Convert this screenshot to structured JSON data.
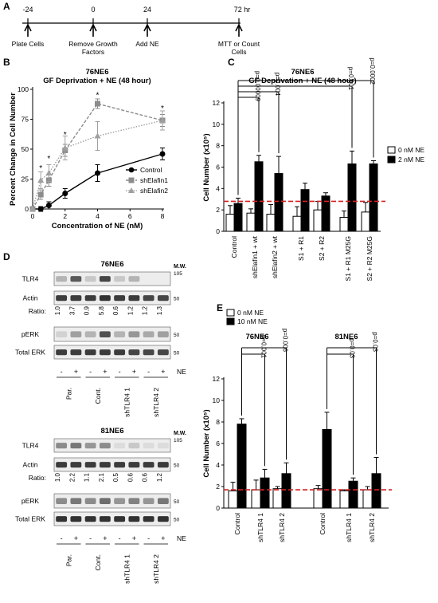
{
  "panel_letters": {
    "A": "A",
    "B": "B",
    "C": "C",
    "D": "D",
    "E": "E"
  },
  "timeline": {
    "ticks": [
      "-24",
      "0",
      "24",
      "72 hr"
    ],
    "events": [
      {
        "lines": [
          "Plate Cells"
        ]
      },
      {
        "lines": [
          "Remove Growth",
          "Factors"
        ]
      },
      {
        "lines": [
          "Add NE"
        ]
      },
      {
        "lines": [
          "MTT or Count",
          "Cells"
        ]
      }
    ]
  },
  "blots": [
    {
      "title": "76NE6",
      "mw_header": "M.W.",
      "rows": [
        {
          "label": "TLR4",
          "mw": "105",
          "kind": "band"
        },
        {
          "label": "Actin",
          "mw": "50",
          "kind": "band"
        },
        {
          "label": "Ratio:",
          "kind": "ratio",
          "values": [
            "1.0",
            "3.7",
            "0.9",
            "5.8",
            "0.6",
            "1.2",
            "1.2",
            "1.3"
          ]
        },
        {
          "label": "pERK",
          "mw": "50",
          "kind": "band"
        },
        {
          "label": "Total ERK",
          "mw": "50",
          "kind": "band"
        }
      ],
      "ne_signs": [
        "-",
        "+",
        "-",
        "+",
        "-",
        "+",
        "-",
        "+"
      ],
      "ne_label": "NE",
      "groups": [
        "Par.",
        "Cont.",
        "shTLR4 1",
        "shTLR4 2"
      ]
    },
    {
      "title": "81NE6",
      "mw_header": "M.W.",
      "rows": [
        {
          "label": "TLR4",
          "mw": "105",
          "kind": "band"
        },
        {
          "label": "Actin",
          "mw": "50",
          "kind": "band"
        },
        {
          "label": "Ratio:",
          "kind": "ratio",
          "values": [
            "1.0",
            "2.2",
            "1.1",
            "2.1",
            "0.5",
            "0.6",
            "0.6",
            "1.2"
          ]
        },
        {
          "label": "pERK",
          "mw": "50",
          "kind": "band"
        },
        {
          "label": "Total ERK",
          "mw": "50",
          "kind": "band"
        }
      ],
      "ne_signs": [
        "-",
        "+",
        "-",
        "+",
        "-",
        "+",
        "-",
        "+"
      ],
      "ne_label": "NE",
      "groups": [
        "Par.",
        "Cont.",
        "shTLR4 1",
        "shTLR4 2"
      ]
    }
  ],
  "chart_data": [
    {
      "panel": "B",
      "type": "line",
      "title": "76NE6",
      "subtitle": "GF Deprivation + NE (48 hour)",
      "xlabel": "Concentration of NE (nM)",
      "ylabel": "Percent Change in Cell Number",
      "xlim": [
        0,
        8
      ],
      "ylim": [
        0,
        100
      ],
      "xticks": [
        "0",
        "2",
        "4",
        "6",
        "8"
      ],
      "yticks": [
        "0",
        "25",
        "50",
        "75",
        "100"
      ],
      "legend_position": "right",
      "x": [
        0,
        0.5,
        1,
        2,
        4,
        8
      ],
      "series": [
        {
          "name": "Control",
          "marker": "circle",
          "color": "#000000",
          "linestyle": "solid",
          "values": [
            0,
            0,
            3,
            13,
            30,
            46
          ],
          "errors": [
            0,
            2,
            3,
            4,
            7,
            5
          ]
        },
        {
          "name": "shElafin1",
          "marker": "square",
          "color": "#8c8c8c",
          "linestyle": "dashed",
          "values": [
            0,
            12,
            24,
            49,
            88,
            74
          ],
          "errors": [
            0,
            4,
            5,
            5,
            4,
            5
          ]
        },
        {
          "name": "shElafin2",
          "marker": "triangle",
          "color": "#a0a0a0",
          "linestyle": "dotted",
          "values": [
            0,
            24,
            30,
            51,
            61,
            74
          ],
          "errors": [
            0,
            7,
            7,
            10,
            12,
            8
          ]
        }
      ],
      "annotations": [
        {
          "text": "*",
          "x": 0.5,
          "y": 32
        },
        {
          "text": "*",
          "x": 1,
          "y": 40
        },
        {
          "text": "*",
          "x": 2,
          "y": 60
        },
        {
          "text": "*",
          "x": 4,
          "y": 93
        },
        {
          "text": "*",
          "x": 8,
          "y": 82
        }
      ]
    },
    {
      "panel": "C",
      "type": "bar",
      "title": "76NE6",
      "subtitle": "GF Deprivation + NE (48 hour)",
      "ylabel": "Cell Number (x10⁵)",
      "ylim": [
        0,
        12
      ],
      "yticks": [
        "0",
        "2",
        "4",
        "6",
        "8",
        "10",
        "12"
      ],
      "categories": [
        "Control",
        "shElafin1 + wt",
        "shElafin2 + wt",
        "S1 + R1",
        "S2 + R2",
        "S1 + R1 M25G",
        "S2 + R2 M25G"
      ],
      "series": [
        {
          "name": "0 nM NE",
          "color": "#ffffff",
          "values": [
            1.6,
            1.7,
            1.6,
            1.4,
            2.0,
            1.3,
            1.8
          ],
          "errors": [
            0.8,
            0.4,
            0.9,
            0.9,
            0.8,
            0.6,
            0.9
          ]
        },
        {
          "name": "2 nM NE",
          "color": "#000000",
          "values": [
            2.6,
            6.5,
            5.4,
            3.9,
            3.3,
            6.3,
            6.3
          ],
          "errors": [
            0.5,
            0.6,
            1.6,
            0.6,
            0.3,
            1.2,
            0.3
          ]
        }
      ],
      "reference_line": 2.8,
      "legend_position": "top-right",
      "pvalues": [
        "p=0.00009",
        "p=0.004",
        "p=0.001",
        "p=0.0002"
      ]
    },
    {
      "panel": "E",
      "type": "bar",
      "ylabel": "Cell Number (x10⁵)",
      "ylim": [
        0,
        12
      ],
      "yticks": [
        "0",
        "2",
        "4",
        "6",
        "8",
        "10",
        "12"
      ],
      "legend_position": "top-left",
      "groups": [
        {
          "title": "76NE6",
          "categories": [
            "Control",
            "shTLR4 1",
            "shTLR4 2"
          ],
          "series": [
            {
              "name": "0 nM NE",
              "values": [
                1.6,
                1.7,
                1.8
              ],
              "errors": [
                0.8,
                0.9,
                0.2
              ]
            },
            {
              "name": "10 nM NE",
              "values": [
                7.8,
                2.8,
                3.2
              ],
              "errors": [
                0.5,
                0.8,
                1.0
              ]
            }
          ],
          "pvalues": [
            "p=0.001",
            "p=0.006"
          ]
        },
        {
          "title": "81NE6",
          "categories": [
            "Control",
            "shTLR4 1",
            "shTLR4 2"
          ],
          "series": [
            {
              "name": "0 nM NE",
              "values": [
                1.8,
                1.6,
                1.7
              ],
              "errors": [
                0.3,
                0.1,
                0.3
              ]
            },
            {
              "name": "10 nM NE",
              "values": [
                7.3,
                2.5,
                3.2
              ],
              "errors": [
                1.6,
                0.3,
                1.5
              ]
            }
          ],
          "pvalues": [
            "p=0.03",
            "p=0.03"
          ]
        }
      ],
      "series_names": [
        "0 nM NE",
        "10 nM NE"
      ],
      "reference_line": 1.7
    }
  ]
}
